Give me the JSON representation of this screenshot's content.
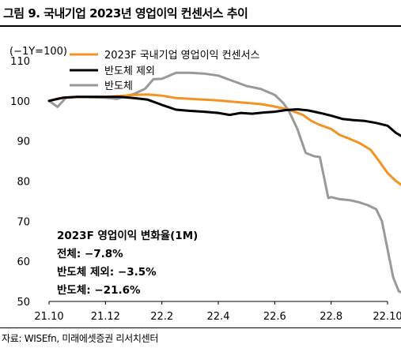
{
  "title": "그림 9. 국내기업 2023년 영업이익 컨센서스 추이",
  "source": "자료: WISEfn, 미래에셋증권 리서치센터",
  "chart_data": {
    "type": "line",
    "unit_label": "(−1Y=100)",
    "ylim": [
      50,
      110
    ],
    "y_ticks": [
      50,
      60,
      70,
      80,
      90,
      100,
      110
    ],
    "x_ticks": [
      "21.10",
      "21.12",
      "22.2",
      "22.4",
      "22.6",
      "22.8",
      "22.10"
    ],
    "x_range": [
      0,
      12
    ],
    "grid": false,
    "legend_position": "top-right",
    "colors": {
      "consensus": "#f39325",
      "ex_semiconductor": "#000000",
      "semiconductor": "#999999"
    },
    "series": [
      {
        "name": "2023F 국내기업 영업이익 컨센서스",
        "key": "consensus",
        "points": [
          [
            0,
            100
          ],
          [
            0.3,
            100.6
          ],
          [
            0.6,
            100.8
          ],
          [
            1,
            101
          ],
          [
            2,
            101
          ],
          [
            2.5,
            101.2
          ],
          [
            3,
            101.5
          ],
          [
            3.5,
            101.6
          ],
          [
            4,
            101.3
          ],
          [
            4.5,
            100.7
          ],
          [
            5,
            100.5
          ],
          [
            5.5,
            100.3
          ],
          [
            6,
            100.1
          ],
          [
            6.5,
            99.8
          ],
          [
            7,
            99.5
          ],
          [
            7.5,
            99.2
          ],
          [
            8,
            98.6
          ],
          [
            8.5,
            97.8
          ],
          [
            9,
            96.5
          ],
          [
            9.3,
            95
          ],
          [
            9.6,
            94
          ],
          [
            10,
            93
          ],
          [
            10.3,
            91.5
          ],
          [
            10.6,
            90.7
          ],
          [
            11,
            89.5
          ],
          [
            11.4,
            87.8
          ],
          [
            11.7,
            85
          ],
          [
            12,
            82
          ],
          [
            12.3,
            80
          ],
          [
            12.5,
            79
          ]
        ]
      },
      {
        "name": "반도체 제외",
        "key": "ex_semiconductor",
        "points": [
          [
            0,
            100
          ],
          [
            0.5,
            100.8
          ],
          [
            1,
            101
          ],
          [
            2,
            101
          ],
          [
            2.5,
            101
          ],
          [
            3,
            100.7
          ],
          [
            3.5,
            100.3
          ],
          [
            4,
            99
          ],
          [
            4.5,
            97.8
          ],
          [
            5,
            97.5
          ],
          [
            5.5,
            97.3
          ],
          [
            6,
            97
          ],
          [
            6.4,
            96.5
          ],
          [
            6.8,
            97
          ],
          [
            7.2,
            96.8
          ],
          [
            7.6,
            97.1
          ],
          [
            8,
            97.3
          ],
          [
            8.4,
            97.7
          ],
          [
            8.8,
            97.9
          ],
          [
            9.2,
            97.6
          ],
          [
            9.6,
            97
          ],
          [
            10,
            96.3
          ],
          [
            10.4,
            95.5
          ],
          [
            10.8,
            95.2
          ],
          [
            11.2,
            95
          ],
          [
            11.6,
            94.5
          ],
          [
            12,
            93.8
          ],
          [
            12.3,
            92
          ],
          [
            12.5,
            91.2
          ]
        ]
      },
      {
        "name": "반도체",
        "key": "semiconductor",
        "points": [
          [
            0,
            100
          ],
          [
            0.3,
            98.5
          ],
          [
            0.6,
            100.8
          ],
          [
            1,
            101
          ],
          [
            2,
            100.8
          ],
          [
            2.4,
            100.5
          ],
          [
            3,
            101.7
          ],
          [
            3.4,
            103
          ],
          [
            3.7,
            105.4
          ],
          [
            4,
            105.5
          ],
          [
            4.5,
            107
          ],
          [
            5,
            107
          ],
          [
            5.5,
            106.8
          ],
          [
            6,
            106.3
          ],
          [
            6.5,
            105
          ],
          [
            7,
            103.7
          ],
          [
            7.5,
            103
          ],
          [
            8,
            101.5
          ],
          [
            8.3,
            99.5
          ],
          [
            8.5,
            97.5
          ],
          [
            8.8,
            93
          ],
          [
            9.1,
            87
          ],
          [
            9.4,
            86.2
          ],
          [
            9.6,
            86
          ],
          [
            9.9,
            75.8
          ],
          [
            10,
            76
          ],
          [
            10.3,
            75.5
          ],
          [
            10.7,
            75.2
          ],
          [
            11,
            74.7
          ],
          [
            11.3,
            74
          ],
          [
            11.6,
            73
          ],
          [
            11.8,
            70
          ],
          [
            12,
            63
          ],
          [
            12.2,
            56
          ],
          [
            12.4,
            52.5
          ],
          [
            12.6,
            52
          ]
        ]
      }
    ],
    "annotation": {
      "title": "2023F 영업이익 변화율(1M)",
      "lines": [
        "전체: −7.8%",
        "반도체 제외: −3.5%",
        "반도체: −21.6%"
      ]
    }
  }
}
